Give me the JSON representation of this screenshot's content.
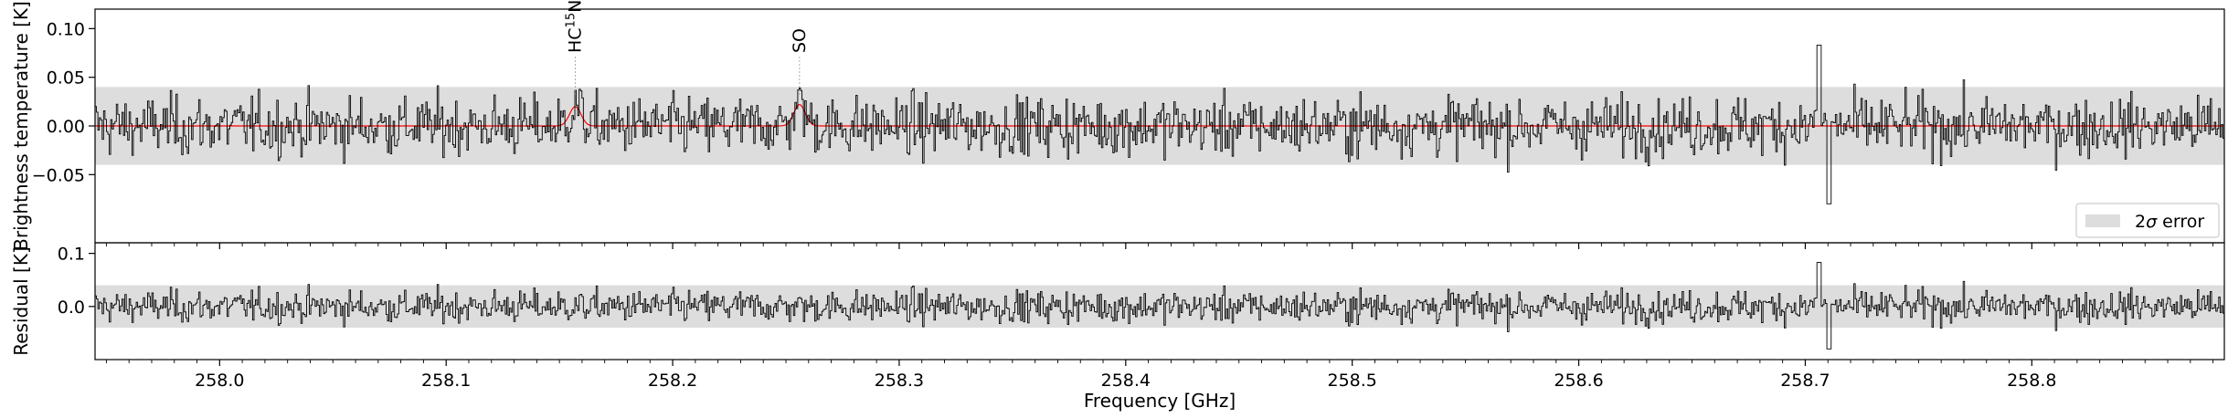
{
  "chart_data": {
    "type": "line",
    "xlabel": "Frequency [GHz]",
    "xlim": [
      257.945,
      258.885
    ],
    "x_ticks": [
      "258.0",
      "258.1",
      "258.2",
      "258.3",
      "258.4",
      "258.5",
      "258.6",
      "258.7",
      "258.8"
    ],
    "x_tick_values": [
      258.0,
      258.1,
      258.2,
      258.3,
      258.4,
      258.5,
      258.6,
      258.7,
      258.8
    ],
    "panels": [
      {
        "ylabel": "Brightness temperature [K]",
        "ylim": [
          -0.12,
          0.12
        ],
        "y_ticks": [
          "0.10",
          "0.05",
          "0.00",
          "−0.05"
        ],
        "y_tick_values": [
          0.1,
          0.05,
          0.0,
          -0.05
        ],
        "band": [
          -0.04,
          0.04
        ],
        "legend": {
          "label_main": "2",
          "label_sigma": "σ",
          "label_rest": " error",
          "placement": "lower right"
        },
        "line_markers": [
          {
            "base": "HC",
            "sup": "15",
            "rest": "N",
            "freq": 258.157
          },
          {
            "base": "SO",
            "sup": "",
            "rest": "",
            "freq": 258.256
          }
        ],
        "series": [
          {
            "kind": "observed",
            "color": "#000000",
            "approx_sigma": 0.02,
            "spikes": [
              {
                "x": 258.706,
                "value": 0.083
              },
              {
                "x": 258.71,
                "value": -0.08
              }
            ]
          },
          {
            "kind": "model",
            "color": "#ff0000",
            "peaks": [
              {
                "x": 258.157,
                "value": 0.02
              },
              {
                "x": 258.256,
                "value": 0.022
              }
            ]
          }
        ]
      },
      {
        "ylabel": "Residual [K]",
        "ylim": [
          -0.1,
          0.12
        ],
        "y_ticks": [
          "0.1",
          "0.0"
        ],
        "y_tick_values": [
          0.1,
          0.0
        ],
        "band": [
          -0.04,
          0.04
        ],
        "series": [
          {
            "kind": "residual",
            "color": "#000000",
            "approx_sigma": 0.02
          }
        ]
      }
    ]
  }
}
